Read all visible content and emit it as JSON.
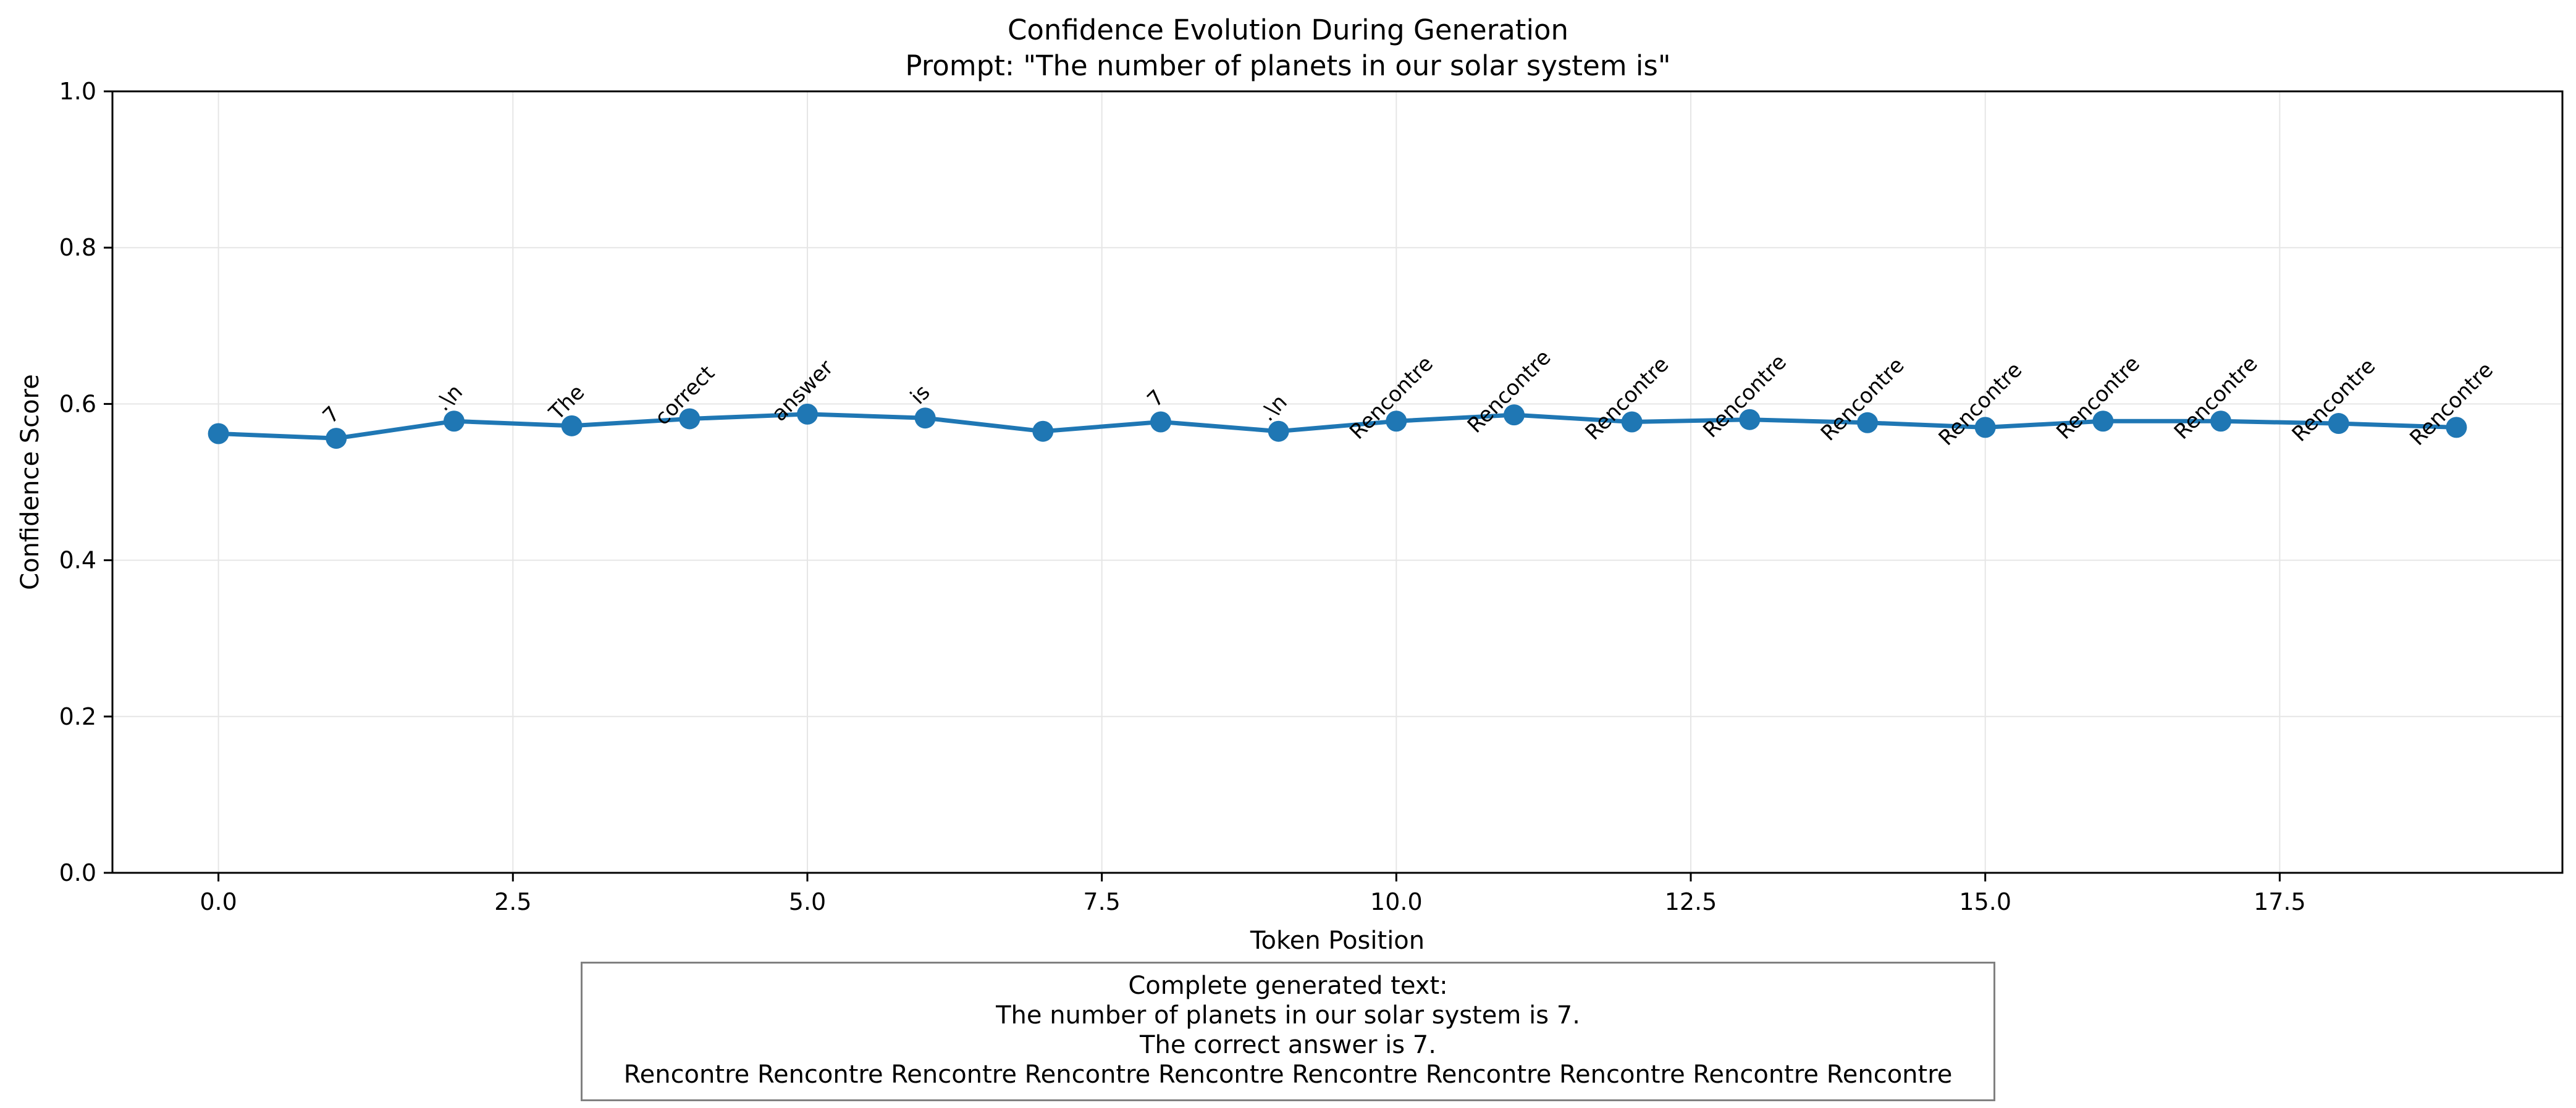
{
  "chart_data": {
    "type": "line",
    "title": "Confidence Evolution During Generation",
    "subtitle": "Prompt: \"The number of planets in our solar system is\"",
    "xlabel": "Token Position",
    "ylabel": "Confidence Score",
    "xlim": [
      -0.9,
      19.9
    ],
    "ylim": [
      0.0,
      1.0
    ],
    "xticks": [
      0.0,
      2.5,
      5.0,
      7.5,
      10.0,
      12.5,
      15.0,
      17.5
    ],
    "xtick_labels": [
      "0.0",
      "2.5",
      "5.0",
      "7.5",
      "10.0",
      "12.5",
      "15.0",
      "17.5"
    ],
    "yticks": [
      0.0,
      0.2,
      0.4,
      0.6,
      0.8,
      1.0
    ],
    "ytick_labels": [
      "0.0",
      "0.2",
      "0.4",
      "0.6",
      "0.8",
      "1.0"
    ],
    "grid": true,
    "color": "#1f77b4",
    "x": [
      0,
      1,
      2,
      3,
      4,
      5,
      6,
      7,
      8,
      9,
      10,
      11,
      12,
      13,
      14,
      15,
      16,
      17,
      18,
      19
    ],
    "values": [
      0.562,
      0.556,
      0.578,
      0.572,
      0.581,
      0.587,
      0.582,
      0.565,
      0.577,
      0.565,
      0.578,
      0.586,
      0.577,
      0.58,
      0.576,
      0.57,
      0.578,
      0.578,
      0.575,
      0.57
    ],
    "tokens": [
      "",
      "7",
      ".\\n",
      "The",
      "correct",
      "answer",
      "is",
      "",
      "7",
      ".\\n",
      "Rencontre",
      "Rencontre",
      "Rencontre",
      "Rencontre",
      "Rencontre",
      "Rencontre",
      "Rencontre",
      "Rencontre",
      "Rencontre",
      "Rencontre"
    ]
  },
  "textbox": {
    "lines": [
      "Complete generated text:",
      "The number of planets in our solar system is 7.",
      "The correct answer is 7.",
      "Rencontre Rencontre Rencontre Rencontre Rencontre Rencontre Rencontre Rencontre Rencontre Rencontre"
    ]
  }
}
